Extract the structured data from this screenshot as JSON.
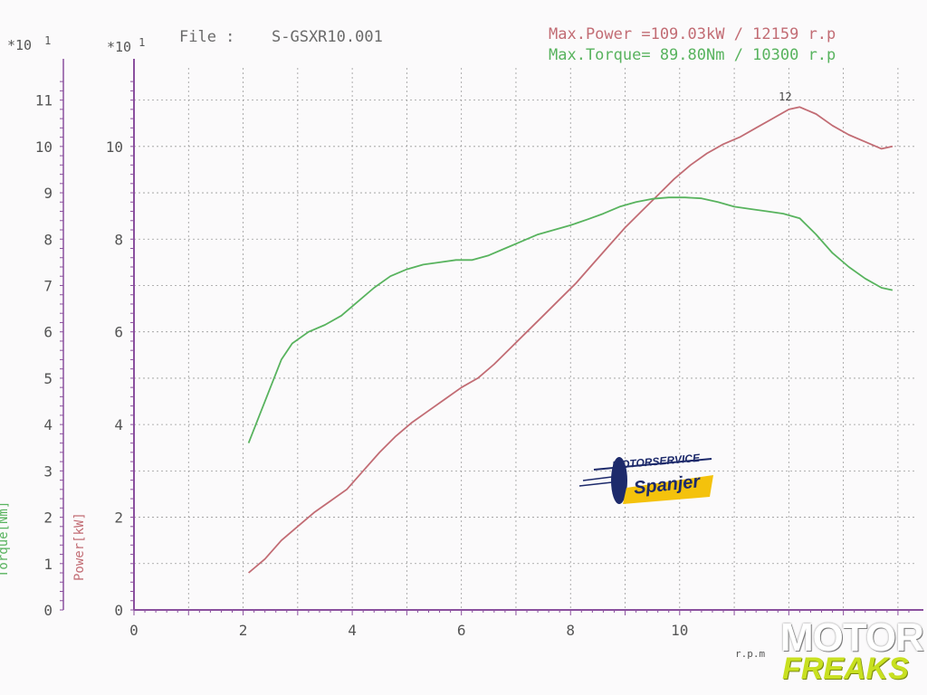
{
  "header": {
    "file_label": "File :",
    "file_name": "S-GSXR10.001",
    "max_power": "Max.Power =109.03kW / 12159 r.p",
    "max_torque": "Max.Torque= 89.80Nm / 10300 r.p"
  },
  "colors": {
    "power": "#c26c74",
    "torque": "#58b35e",
    "axis": "#8a4f9e",
    "grid": "#9a9a9a",
    "text": "#555555"
  },
  "logo": {
    "line1": "MOTORSERVICE",
    "line2": "Spanjer"
  },
  "watermark": {
    "line1": "MOTOR",
    "line2": "FREAKS"
  },
  "chart_data": {
    "type": "line",
    "xlim": [
      0,
      14.3
    ],
    "x_ticks": [
      "0",
      "2",
      "4",
      "6",
      "8",
      "10"
    ],
    "x_tick_values": [
      0,
      2,
      4,
      6,
      8,
      10
    ],
    "x_tick_partial": "12",
    "x_unit_partial": "r.p.m",
    "axes": [
      {
        "id": "power",
        "label": "Power[kW]",
        "multiplier": "*10",
        "multiplier_exp": "1",
        "ylim": [
          0,
          11.5
        ],
        "ticks": [
          "0",
          "2",
          "4",
          "6",
          "8",
          "10"
        ],
        "tick_values": [
          0,
          2,
          4,
          6,
          8,
          10
        ]
      },
      {
        "id": "torque",
        "label": "Torque[Nm]",
        "multiplier": "*10",
        "multiplier_exp": "1",
        "ylim": [
          0,
          11.5
        ],
        "ticks": [
          "0",
          "1",
          "2",
          "3",
          "4",
          "5",
          "6",
          "7",
          "8",
          "9",
          "10",
          "11"
        ],
        "tick_values": [
          0,
          1,
          2,
          3,
          4,
          5,
          6,
          7,
          8,
          9,
          10,
          11
        ]
      }
    ],
    "series": [
      {
        "axis": "power",
        "x": [
          2.1,
          2.4,
          2.7,
          3.0,
          3.3,
          3.6,
          3.9,
          4.2,
          4.5,
          4.8,
          5.1,
          5.4,
          5.7,
          6.0,
          6.3,
          6.6,
          6.9,
          7.2,
          7.5,
          7.8,
          8.1,
          8.4,
          8.7,
          9.0,
          9.3,
          9.6,
          9.9,
          10.2,
          10.5,
          10.8,
          11.1,
          11.4,
          11.7,
          12.0,
          12.2,
          12.5,
          12.8,
          13.1,
          13.4,
          13.7,
          13.9
        ],
        "y": [
          0.8,
          1.1,
          1.5,
          1.8,
          2.1,
          2.35,
          2.6,
          3.0,
          3.4,
          3.75,
          4.05,
          4.3,
          4.55,
          4.8,
          5.0,
          5.3,
          5.65,
          6.0,
          6.35,
          6.7,
          7.05,
          7.45,
          7.85,
          8.25,
          8.6,
          8.95,
          9.3,
          9.6,
          9.85,
          10.05,
          10.2,
          10.4,
          10.6,
          10.8,
          10.85,
          10.7,
          10.45,
          10.25,
          10.1,
          9.95,
          10.0
        ]
      },
      {
        "axis": "torque",
        "x": [
          2.1,
          2.3,
          2.5,
          2.7,
          2.9,
          3.2,
          3.5,
          3.8,
          4.1,
          4.4,
          4.7,
          5.0,
          5.3,
          5.6,
          5.9,
          6.2,
          6.5,
          6.8,
          7.1,
          7.4,
          7.7,
          8.0,
          8.3,
          8.6,
          8.9,
          9.2,
          9.5,
          9.8,
          10.1,
          10.4,
          10.7,
          11.0,
          11.3,
          11.6,
          11.9,
          12.2,
          12.5,
          12.8,
          13.1,
          13.4,
          13.7,
          13.9
        ],
        "y": [
          3.6,
          4.2,
          4.8,
          5.4,
          5.75,
          6.0,
          6.15,
          6.35,
          6.65,
          6.95,
          7.2,
          7.35,
          7.45,
          7.5,
          7.55,
          7.55,
          7.65,
          7.8,
          7.95,
          8.1,
          8.2,
          8.3,
          8.42,
          8.55,
          8.7,
          8.8,
          8.87,
          8.9,
          8.9,
          8.88,
          8.8,
          8.7,
          8.65,
          8.6,
          8.55,
          8.45,
          8.1,
          7.7,
          7.4,
          7.15,
          6.95,
          6.9
        ]
      }
    ]
  }
}
